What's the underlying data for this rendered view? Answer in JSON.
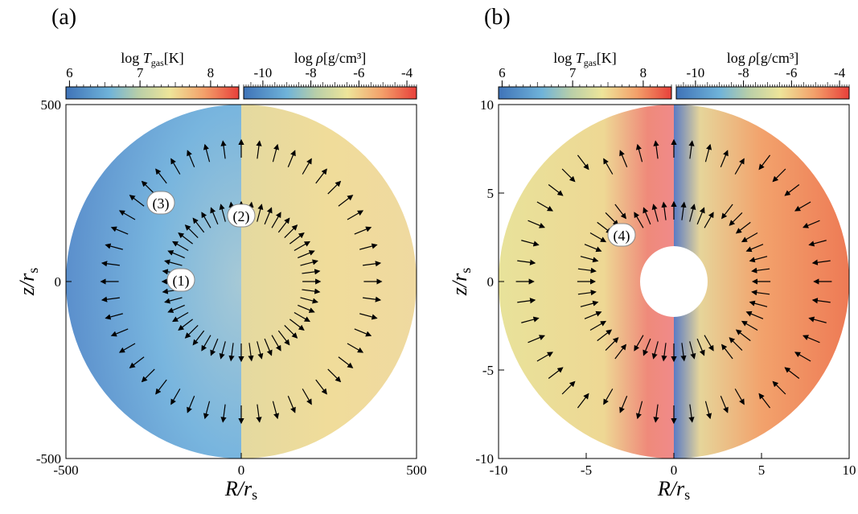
{
  "panels": [
    {
      "label": "(a)",
      "colorbars": [
        {
          "label": {
            "pre": "log ",
            "sym": "T",
            "sub": "gas",
            "post": "[K]"
          },
          "range": [
            5.95,
            8.4
          ],
          "ticks": [
            6,
            7,
            8
          ]
        },
        {
          "label": {
            "pre": "log ",
            "sym": "ρ",
            "sub": "",
            "post": "[g/cm³]"
          },
          "range": [
            -10.8,
            -3.6
          ],
          "ticks": [
            -10,
            -8,
            -6,
            -4
          ]
        }
      ],
      "xlabel": {
        "main": "R/r",
        "sub": "s"
      },
      "ylabel": {
        "main": "z/r",
        "sub": "s"
      },
      "xlim": [
        -500,
        500
      ],
      "ylim": [
        -500,
        500
      ],
      "xticks": [
        -500,
        0,
        500
      ],
      "yticks": [
        -500,
        0,
        500
      ],
      "annotations": [
        "(1)",
        "(2)",
        "(3)"
      ]
    },
    {
      "label": "(b)",
      "colorbars": [
        {
          "label": {
            "pre": "log ",
            "sym": "T",
            "sub": "gas",
            "post": "[K]"
          },
          "range": [
            5.95,
            8.4
          ],
          "ticks": [
            6,
            7,
            8
          ]
        },
        {
          "label": {
            "pre": "log ",
            "sym": "ρ",
            "sub": "",
            "post": "[g/cm³]"
          },
          "range": [
            -10.8,
            -3.6
          ],
          "ticks": [
            -10,
            -8,
            -6,
            -4
          ]
        }
      ],
      "xlabel": {
        "main": "R/r",
        "sub": "s"
      },
      "ylabel": {
        "main": "z/r",
        "sub": "s"
      },
      "xlim": [
        -10,
        10
      ],
      "ylim": [
        -10,
        10
      ],
      "xticks": [
        -10,
        -5,
        0,
        5,
        10
      ],
      "yticks": [
        -10,
        -5,
        0,
        5,
        10
      ],
      "annotations": [
        "(4)"
      ]
    }
  ]
}
